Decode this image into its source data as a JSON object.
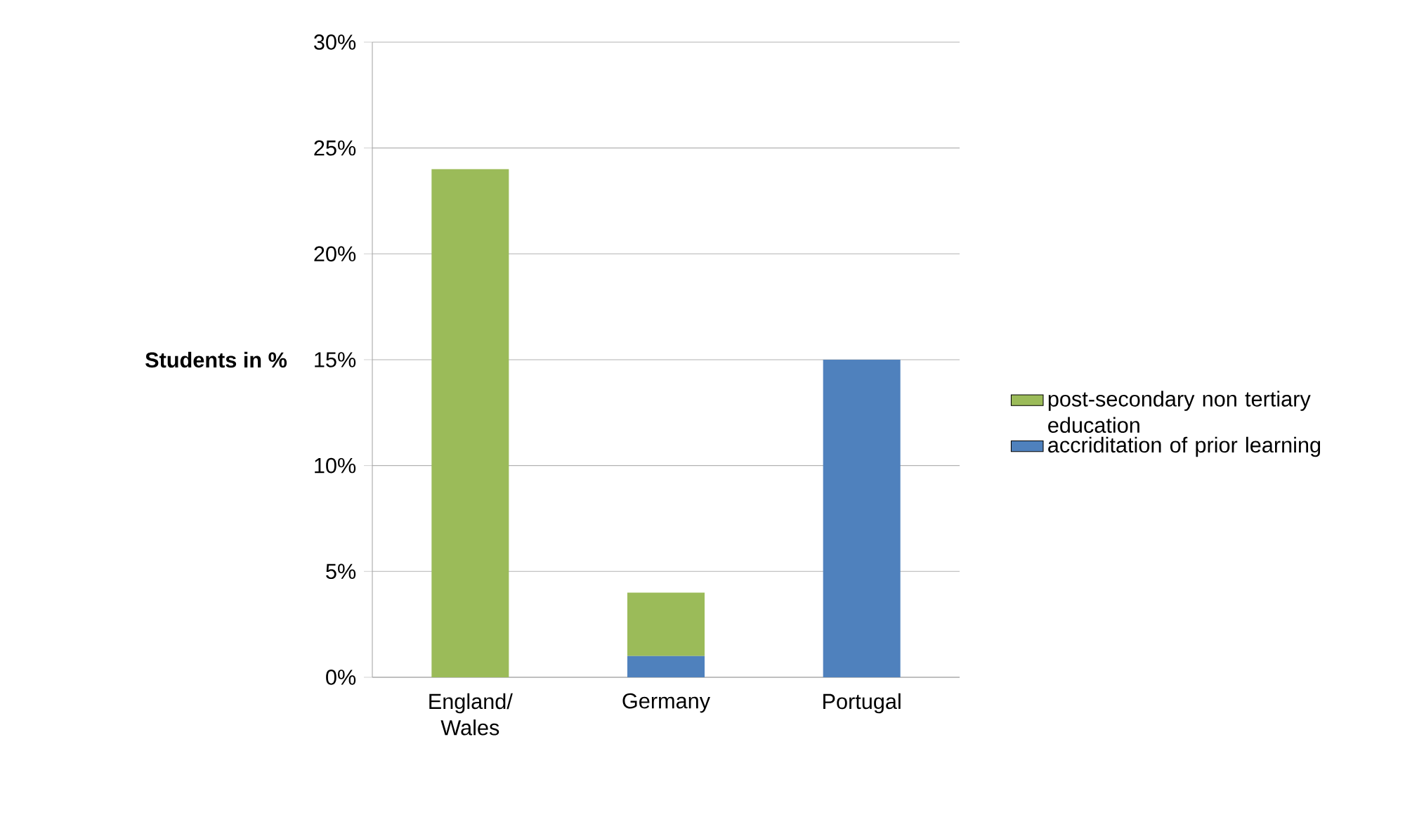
{
  "chart_data": {
    "type": "bar",
    "stacked": true,
    "ylabel": "Students in %",
    "categories": [
      "England/ Wales",
      "Germany",
      "Portugal"
    ],
    "series": [
      {
        "name": "accriditation of prior learning",
        "color": "#4f81bd",
        "values": [
          0,
          1,
          15
        ]
      },
      {
        "name": "post-secondary non tertiary education",
        "color": "#9bbb59",
        "values": [
          24,
          3,
          0
        ]
      }
    ],
    "ylim": [
      0,
      30
    ],
    "yticks": [
      {
        "value": 0,
        "label": "0%"
      },
      {
        "value": 5,
        "label": "5%"
      },
      {
        "value": 10,
        "label": "10%"
      },
      {
        "value": 15,
        "label": "15%"
      },
      {
        "value": 20,
        "label": "20%"
      },
      {
        "value": 25,
        "label": "25%"
      },
      {
        "value": 30,
        "label": "30%"
      }
    ],
    "grid": "y",
    "legend": "right"
  }
}
